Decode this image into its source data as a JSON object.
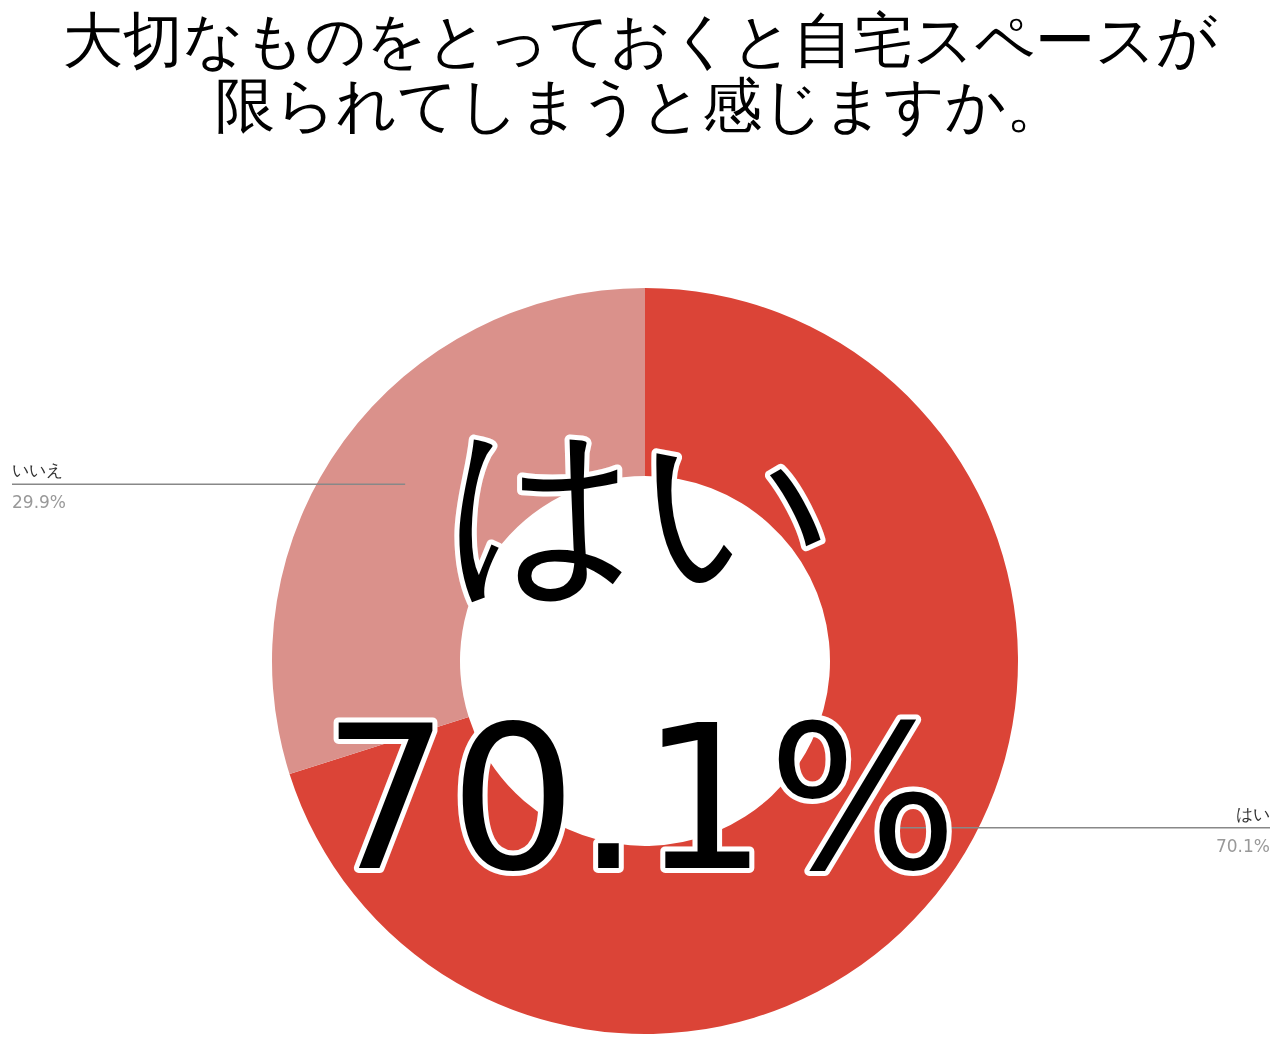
{
  "chart_data": {
    "type": "donut",
    "title": "大切なものをとっておくと自宅スペースが限られてしまうと感じますか。",
    "categories": [
      "はい",
      "いいえ"
    ],
    "values": [
      70.1,
      29.9
    ],
    "colors": [
      "#db4437",
      "#da918b"
    ],
    "value_labels": [
      "70.1%",
      "29.9%"
    ],
    "annotations": [
      "はい",
      "70.1%"
    ]
  }
}
